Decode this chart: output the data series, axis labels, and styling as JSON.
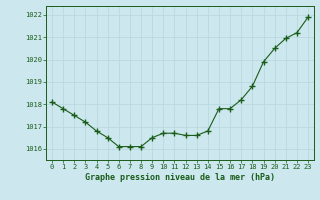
{
  "x": [
    0,
    1,
    2,
    3,
    4,
    5,
    6,
    7,
    8,
    9,
    10,
    11,
    12,
    13,
    14,
    15,
    16,
    17,
    18,
    19,
    20,
    21,
    22,
    23
  ],
  "y": [
    1018.1,
    1017.8,
    1017.5,
    1017.2,
    1016.8,
    1016.5,
    1016.1,
    1016.1,
    1016.1,
    1016.5,
    1016.7,
    1016.7,
    1016.6,
    1016.6,
    1016.8,
    1017.8,
    1017.8,
    1018.2,
    1018.8,
    1019.9,
    1020.5,
    1020.95,
    1021.2,
    1021.9
  ],
  "line_color": "#1a5c1a",
  "marker_color": "#1a5c1a",
  "bg_color": "#cce8ee",
  "grid_color": "#b8d8e0",
  "xlabel": "Graphe pression niveau de la mer (hPa)",
  "xlabel_color": "#1a5c1a",
  "tick_color": "#1a5c1a",
  "ylim_min": 1015.5,
  "ylim_max": 1022.4,
  "yticks": [
    1016,
    1017,
    1018,
    1019,
    1020,
    1021,
    1022
  ],
  "xticks": [
    0,
    1,
    2,
    3,
    4,
    5,
    6,
    7,
    8,
    9,
    10,
    11,
    12,
    13,
    14,
    15,
    16,
    17,
    18,
    19,
    20,
    21,
    22,
    23
  ]
}
